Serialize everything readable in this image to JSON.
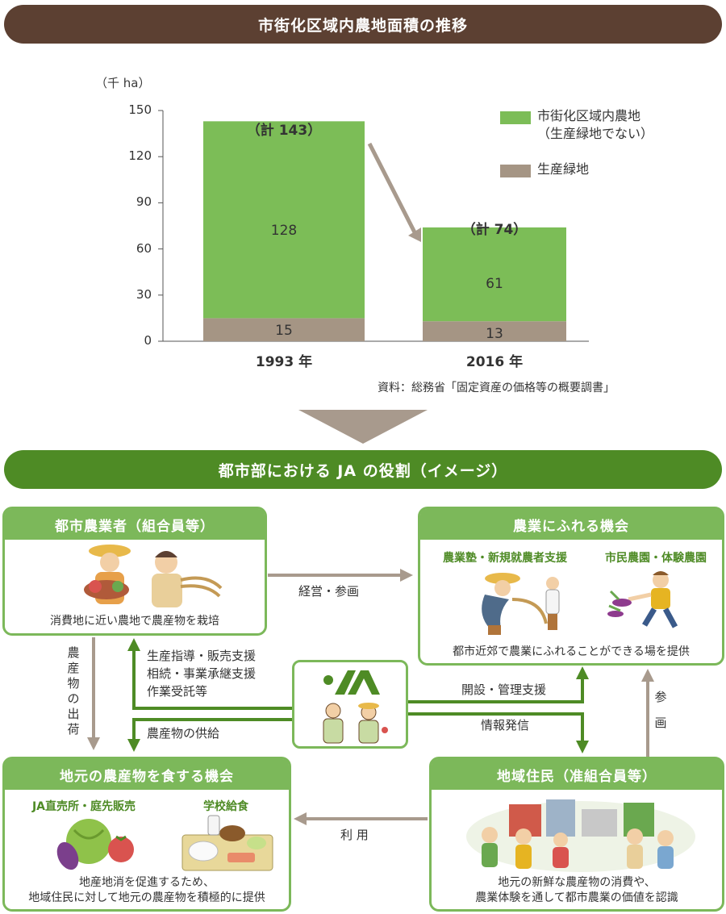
{
  "header_top": {
    "title": "市街化区域内農地面積の推移"
  },
  "chart_data": {
    "type": "bar",
    "stacked": true,
    "unit_label": "（千 ha）",
    "categories": [
      "1993 年",
      "2016 年"
    ],
    "series": [
      {
        "name": "生産緑地",
        "values": [
          15,
          13
        ],
        "color": "#a59584"
      },
      {
        "name": "市街化区域内農地（生産緑地でない）",
        "values": [
          128,
          61
        ],
        "color": "#7cbd57"
      }
    ],
    "totals": [
      "（計 143）",
      "（計 74）"
    ],
    "ylim": [
      0,
      150
    ],
    "yticks": [
      0,
      30,
      60,
      90,
      120,
      150
    ],
    "legend_position": "top-right",
    "legend": [
      {
        "line1": "市街化区域内農地",
        "line2": "（生産緑地でない）",
        "color": "#7cbd57"
      },
      {
        "line1": "生産緑地",
        "color": "#a59584"
      }
    ],
    "source": "資料：総務省「固定資産の価格等の概要調書」"
  },
  "header_bottom": {
    "title": "都市部における JA の役割（イメージ）"
  },
  "boxes": {
    "farmers": {
      "title": "都市農業者（組合員等）",
      "caption": "消費地に近い農地で農産物を栽培"
    },
    "opportunity": {
      "title": "農業にふれる機会",
      "sub_left": "農業塾・新規就農者支援",
      "sub_right": "市民農園・体験農園",
      "caption": "都市近郊で農業にふれることができる場を提供"
    },
    "local_food": {
      "title": "地元の農産物を食する機会",
      "sub_left": "JA直売所・庭先販売",
      "sub_right": "学校給食",
      "caption_line1": "地産地消を促進するため、",
      "caption_line2": "地域住民に対して地元の農産物を積極的に提供"
    },
    "residents": {
      "title": "地域住民（准組合員等）",
      "caption_line1": "地元の新鮮な農産物の消費や、",
      "caption_line2": "農業体験を通して都市農業の価値を認識"
    }
  },
  "flows": {
    "management": "経営・参画",
    "shipment": "農産物の出荷",
    "support_1": "生産指導・販売支援",
    "support_2": "相続・事業承継支援",
    "support_3": "作業受託等",
    "supply": "農産物の供給",
    "setup": "開設・管理支援",
    "info": "情報発信",
    "participation": "参画",
    "use": "利 用"
  },
  "colors": {
    "brown_header": "#5c4032",
    "green_header": "#4e8b25",
    "box_green": "#7cb85a",
    "arrow_gray": "#a89a8d",
    "arrow_green": "#4e8b25"
  }
}
